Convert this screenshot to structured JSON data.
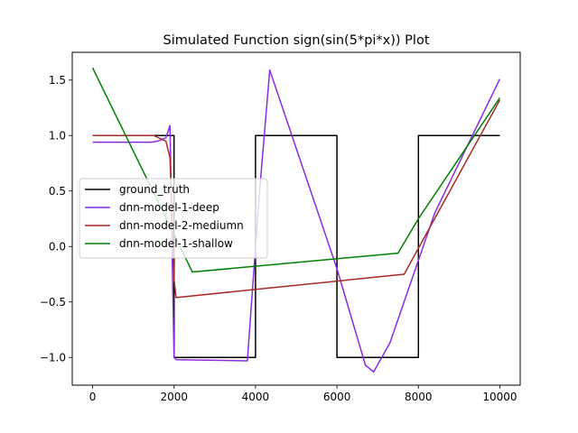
{
  "chart_data": {
    "type": "line",
    "title": "Simulated Function sign(sin(5*pi*x)) Plot",
    "xlabel": "",
    "ylabel": "",
    "xlim": [
      -500,
      10500
    ],
    "ylim": [
      -1.25,
      1.75
    ],
    "xticks": [
      0,
      2000,
      4000,
      6000,
      8000,
      10000
    ],
    "xtick_labels": [
      "0",
      "2000",
      "4000",
      "6000",
      "8000",
      "10000"
    ],
    "yticks": [
      -1.0,
      -0.5,
      0.0,
      0.5,
      1.0,
      1.5
    ],
    "ytick_labels": [
      "−1.0",
      "−0.5",
      "0.0",
      "0.5",
      "1.0",
      "1.5"
    ],
    "grid": false,
    "legend_position": "center-left",
    "series": [
      {
        "name": "ground_truth",
        "color": "#000000",
        "x": [
          0,
          2000,
          2000,
          4000,
          4000,
          6000,
          6000,
          8000,
          8000,
          10000
        ],
        "y": [
          1,
          1,
          -1,
          -1,
          1,
          1,
          -1,
          -1,
          1,
          1
        ]
      },
      {
        "name": "dnn-model-1-deep",
        "color": "#8a2be2",
        "x": [
          0,
          1450,
          1600,
          1800,
          1900,
          1950,
          2000,
          2050,
          3800,
          4100,
          4350,
          6000,
          6700,
          6900,
          7300,
          8400,
          10000
        ],
        "y": [
          0.94,
          0.94,
          0.95,
          0.98,
          1.09,
          0.0,
          -1.0,
          -1.02,
          -1.03,
          0.5,
          1.59,
          -0.2,
          -1.07,
          -1.13,
          -0.87,
          0.3,
          1.51
        ]
      },
      {
        "name": "dnn-model-2-mediumn",
        "color": "#a52a2a",
        "x": [
          0,
          1500,
          1800,
          1900,
          1950,
          2000,
          2050,
          7650,
          10000
        ],
        "y": [
          1.0,
          1.0,
          0.95,
          0.8,
          0.3,
          -0.3,
          -0.46,
          -0.25,
          1.32
        ]
      },
      {
        "name": "dnn-model-1-shallow",
        "color": "#008000",
        "x": [
          0,
          2450,
          7500,
          8000,
          10000
        ],
        "y": [
          1.61,
          -0.23,
          -0.06,
          0.25,
          1.34
        ]
      }
    ]
  }
}
